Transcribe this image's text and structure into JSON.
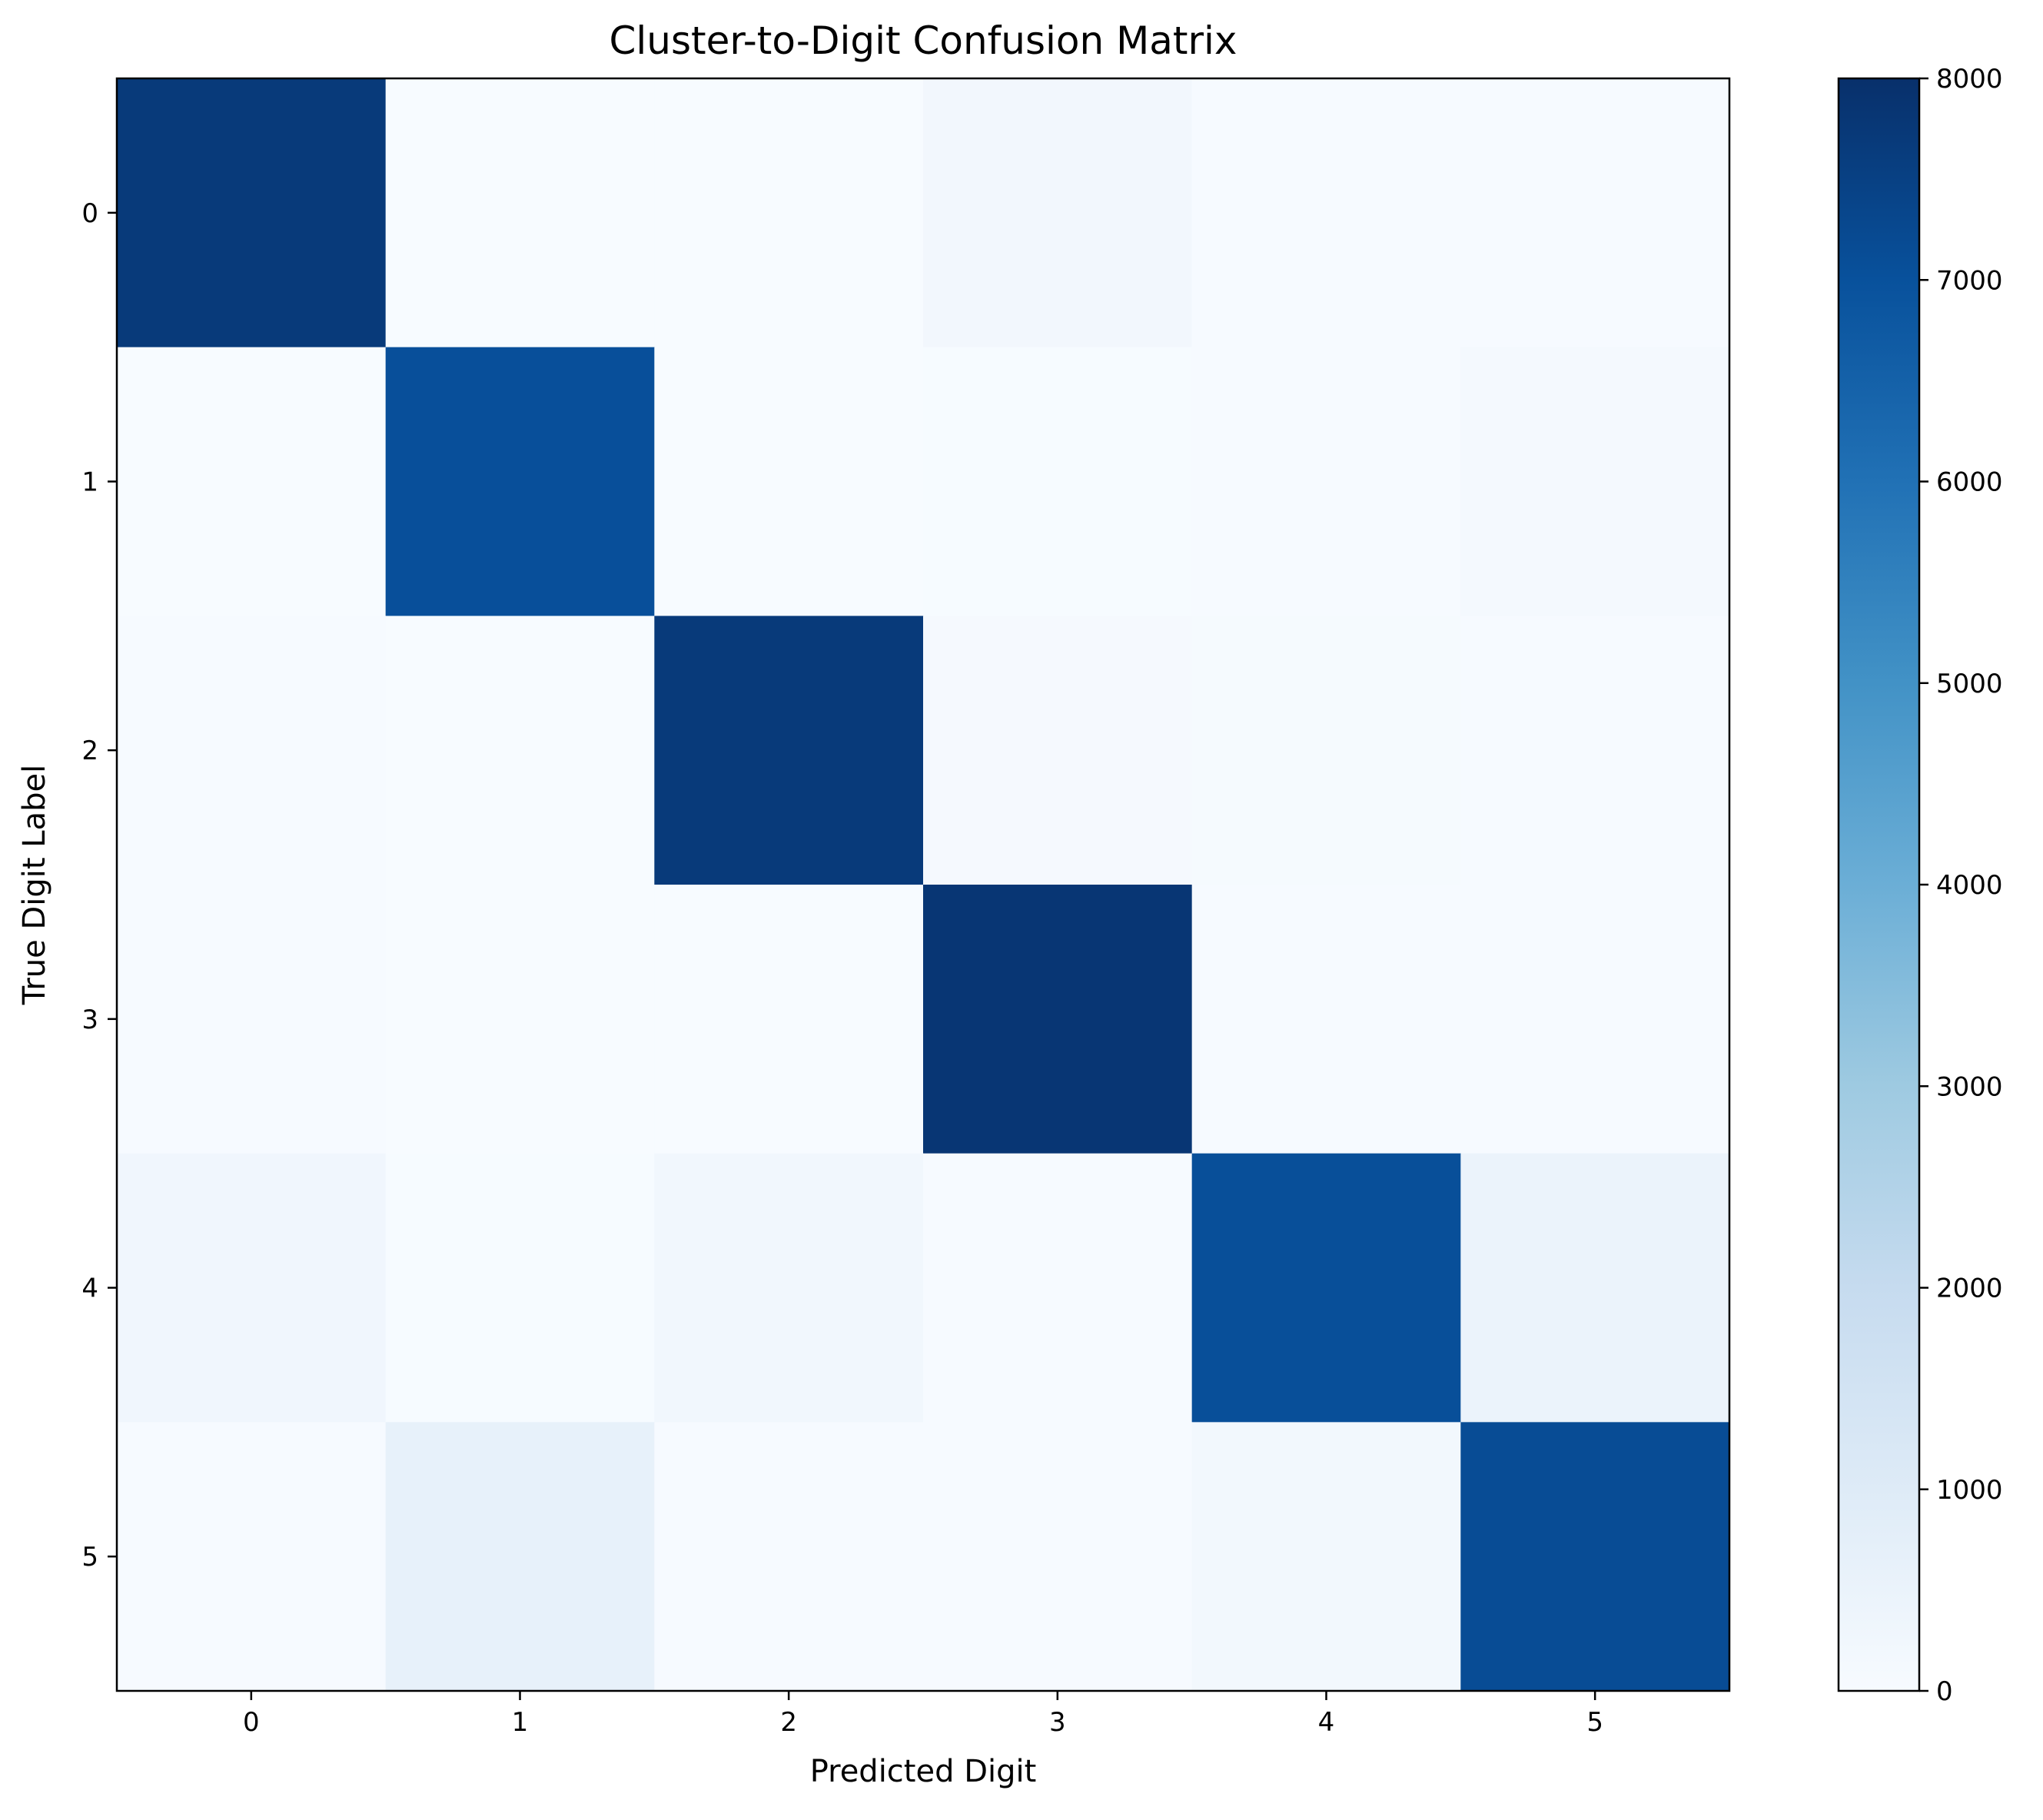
{
  "chart_data": {
    "type": "heatmap",
    "title": "Cluster-to-Digit Confusion Matrix",
    "xlabel": "Predicted Digit",
    "ylabel": "True Digit Label",
    "x_categories": [
      "0",
      "1",
      "2",
      "3",
      "4",
      "5"
    ],
    "y_categories": [
      "0",
      "1",
      "2",
      "3",
      "4",
      "5"
    ],
    "values": [
      [
        7700,
        10,
        20,
        220,
        60,
        50
      ],
      [
        20,
        7050,
        20,
        30,
        60,
        130
      ],
      [
        60,
        20,
        7690,
        100,
        80,
        40
      ],
      [
        40,
        20,
        10,
        7820,
        40,
        50
      ],
      [
        300,
        30,
        260,
        60,
        7060,
        480
      ],
      [
        60,
        650,
        40,
        40,
        210,
        7150
      ]
    ],
    "colormap": "Blues",
    "colorbar": {
      "min": 0,
      "max": 8000,
      "ticks": [
        "0",
        "1000",
        "2000",
        "3000",
        "4000",
        "5000",
        "6000",
        "7000",
        "8000"
      ]
    },
    "grid": false,
    "legend": "colorbar-right"
  }
}
